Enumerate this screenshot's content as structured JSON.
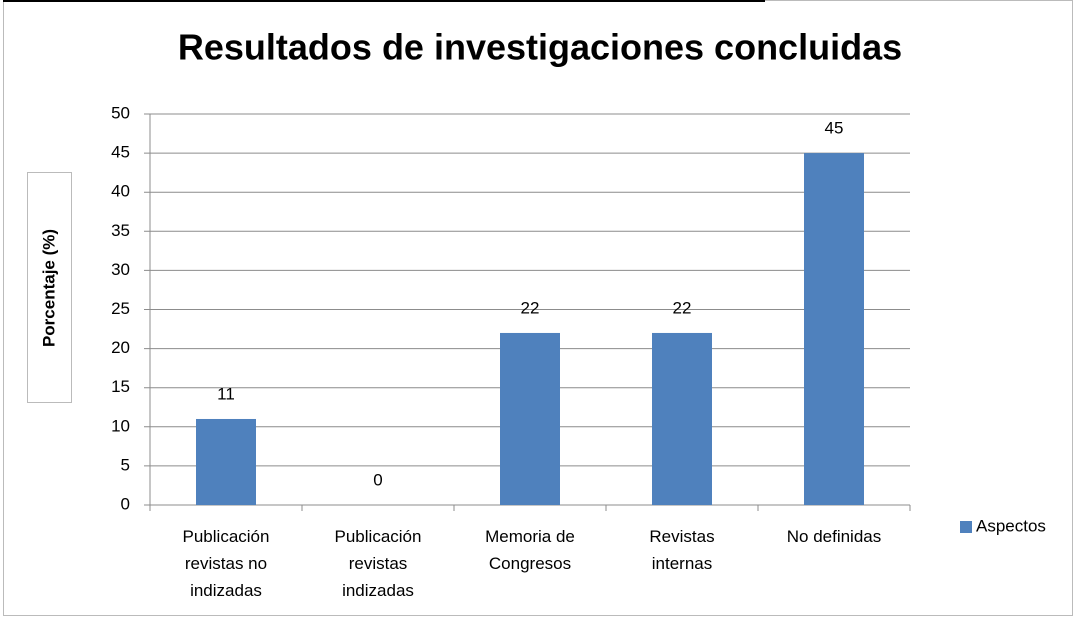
{
  "chart_data": {
    "type": "bar",
    "title": "Resultados de investigaciones concluidas",
    "y_label": "Porcentaje (%)",
    "categories": [
      "Publicación\nrevistas no\nindizadas",
      "Publicación\nrevistas\nindizadas",
      "Memoria de\nCongresos",
      "Revistas\ninternas",
      "No definidas"
    ],
    "series": [
      {
        "name": "Aspectos",
        "color": "#4f81bd",
        "values": [
          11,
          0,
          22,
          22,
          45
        ]
      }
    ],
    "ylim": [
      0,
      50
    ],
    "yticks": [
      0,
      5,
      10,
      15,
      20,
      25,
      30,
      35,
      40,
      45,
      50
    ],
    "grid": true,
    "legend": "right"
  }
}
